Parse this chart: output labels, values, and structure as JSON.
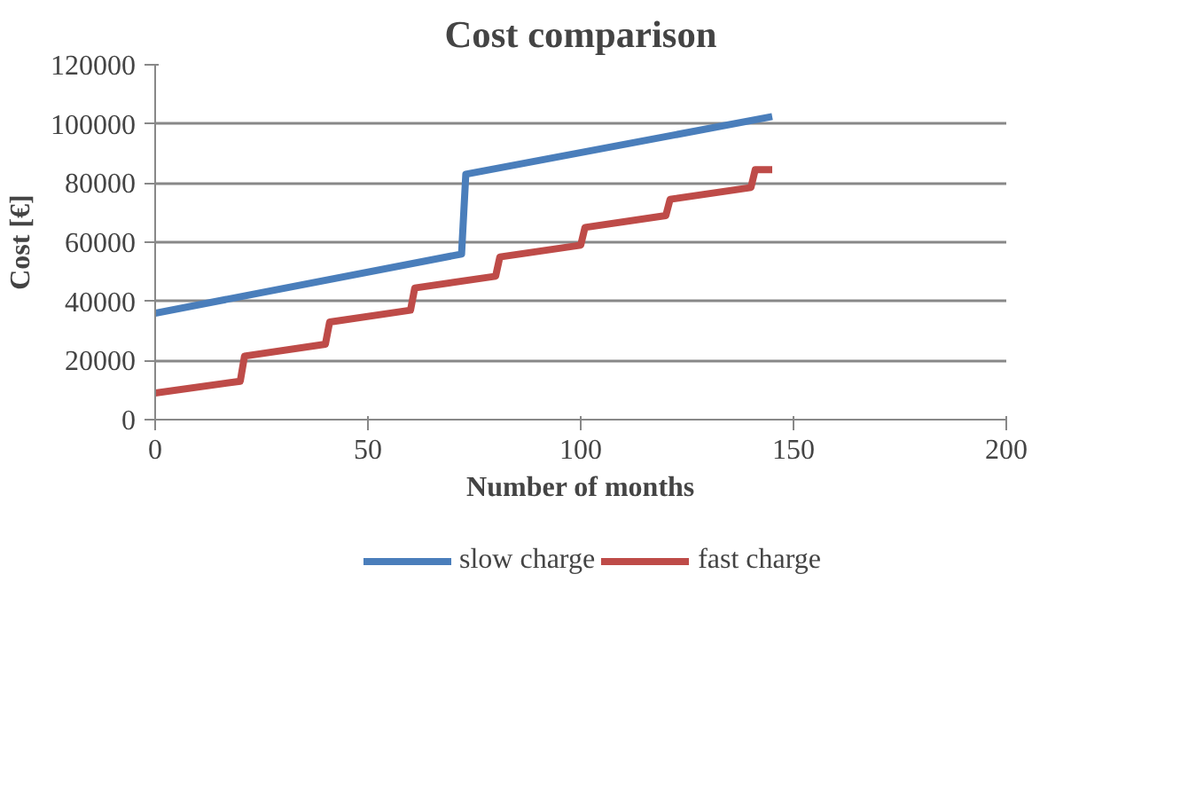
{
  "chart_data": {
    "type": "line",
    "title": "Cost comparison",
    "xlabel": "Number of months",
    "ylabel": "Cost [€]",
    "xlim": [
      0,
      200
    ],
    "xticks": [
      0,
      50,
      100,
      150,
      200
    ],
    "ylim": [
      0,
      120000
    ],
    "yticks": [
      0,
      20000,
      40000,
      60000,
      80000,
      100000,
      120000
    ],
    "grid": "y",
    "legend": "bottom",
    "marker": "none",
    "line_style": "solid",
    "series": [
      {
        "name": "slow charge",
        "color": "#4a7ebb",
        "x": [
          0,
          72,
          73,
          145
        ],
        "values": [
          36000,
          56000,
          83000,
          102500
        ]
      },
      {
        "name": "fast charge",
        "color": "#be4b48",
        "x": [
          0,
          20,
          21,
          40,
          41,
          60,
          61,
          80,
          81,
          100,
          101,
          120,
          121,
          140,
          141,
          145
        ],
        "values": [
          9000,
          13000,
          21500,
          25500,
          33000,
          37000,
          44500,
          48500,
          55000,
          59000,
          65000,
          69000,
          74500,
          78500,
          84500,
          84500
        ]
      }
    ]
  }
}
